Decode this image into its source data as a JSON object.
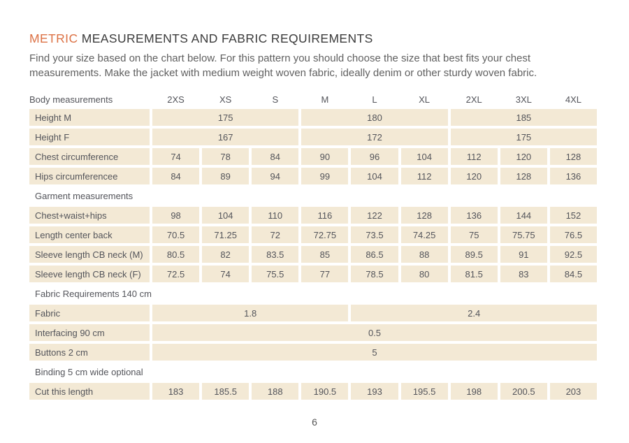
{
  "page": {
    "title_highlight": "METRIC",
    "title_rest": " MEASUREMENTS AND FABRIC REQUIREMENTS",
    "intro": "Find your size based on the chart below. For this pattern you should choose the size that best fits your chest measurements. Make the jacket with medium weight woven fabric, ideally denim or other sturdy woven fabric.",
    "page_number": "6"
  },
  "colors": {
    "accent": "#DC7245",
    "cell_bg": "#F3E9D5"
  },
  "table": {
    "columns": [
      "Body measurements",
      "2XS",
      "XS",
      "S",
      "M",
      "L",
      "XL",
      "2XL",
      "3XL",
      "4XL"
    ],
    "rows": [
      {
        "type": "data",
        "label": "Height M",
        "cells": [
          {
            "v": "175",
            "span": 3
          },
          {
            "v": "180",
            "span": 3
          },
          {
            "v": "185",
            "span": 3
          }
        ]
      },
      {
        "type": "data",
        "label": "Height F",
        "cells": [
          {
            "v": "167",
            "span": 3
          },
          {
            "v": "172",
            "span": 3
          },
          {
            "v": "175",
            "span": 3
          }
        ]
      },
      {
        "type": "data",
        "label": "Chest circumference",
        "cells": [
          {
            "v": "74"
          },
          {
            "v": "78"
          },
          {
            "v": "84"
          },
          {
            "v": "90"
          },
          {
            "v": "96"
          },
          {
            "v": "104"
          },
          {
            "v": "112"
          },
          {
            "v": "120"
          },
          {
            "v": "128"
          }
        ]
      },
      {
        "type": "data",
        "label": "Hips circumferencee",
        "cells": [
          {
            "v": "84"
          },
          {
            "v": "89"
          },
          {
            "v": "94"
          },
          {
            "v": "99"
          },
          {
            "v": "104"
          },
          {
            "v": "112"
          },
          {
            "v": "120"
          },
          {
            "v": "128"
          },
          {
            "v": "136"
          }
        ]
      },
      {
        "type": "section",
        "label": "Garment measurements"
      },
      {
        "type": "data",
        "label": "Chest+waist+hips",
        "cells": [
          {
            "v": "98"
          },
          {
            "v": "104"
          },
          {
            "v": "110"
          },
          {
            "v": "116"
          },
          {
            "v": "122"
          },
          {
            "v": "128"
          },
          {
            "v": "136"
          },
          {
            "v": "144"
          },
          {
            "v": "152"
          }
        ]
      },
      {
        "type": "data",
        "label": "Length center back",
        "cells": [
          {
            "v": "70.5"
          },
          {
            "v": "71.25"
          },
          {
            "v": "72"
          },
          {
            "v": "72.75"
          },
          {
            "v": "73.5"
          },
          {
            "v": "74.25"
          },
          {
            "v": "75"
          },
          {
            "v": "75.75"
          },
          {
            "v": "76.5"
          }
        ]
      },
      {
        "type": "data",
        "label": "Sleeve length CB neck (M)",
        "cells": [
          {
            "v": "80.5"
          },
          {
            "v": "82"
          },
          {
            "v": "83.5"
          },
          {
            "v": "85"
          },
          {
            "v": "86.5"
          },
          {
            "v": "88"
          },
          {
            "v": "89.5"
          },
          {
            "v": "91"
          },
          {
            "v": "92.5"
          }
        ]
      },
      {
        "type": "data",
        "label": "Sleeve length CB neck (F)",
        "cells": [
          {
            "v": "72.5"
          },
          {
            "v": "74"
          },
          {
            "v": "75.5"
          },
          {
            "v": "77"
          },
          {
            "v": "78.5"
          },
          {
            "v": "80"
          },
          {
            "v": "81.5"
          },
          {
            "v": "83"
          },
          {
            "v": "84.5"
          }
        ]
      },
      {
        "type": "section",
        "label": "Fabric Requirements 140 cm"
      },
      {
        "type": "data",
        "label": "Fabric",
        "cells": [
          {
            "v": "1.8",
            "span": 4
          },
          {
            "v": "2.4",
            "span": 5
          }
        ]
      },
      {
        "type": "data",
        "label": "Interfacing 90 cm",
        "cells": [
          {
            "v": "0.5",
            "span": 9
          }
        ]
      },
      {
        "type": "data",
        "label": "Buttons 2 cm",
        "cells": [
          {
            "v": "5",
            "span": 9
          }
        ]
      },
      {
        "type": "section",
        "label": "Binding 5 cm wide optional"
      },
      {
        "type": "data",
        "label": "Cut this length",
        "cells": [
          {
            "v": "183"
          },
          {
            "v": "185.5"
          },
          {
            "v": "188"
          },
          {
            "v": "190.5"
          },
          {
            "v": "193"
          },
          {
            "v": "195.5"
          },
          {
            "v": "198"
          },
          {
            "v": "200.5"
          },
          {
            "v": "203"
          }
        ]
      }
    ]
  }
}
